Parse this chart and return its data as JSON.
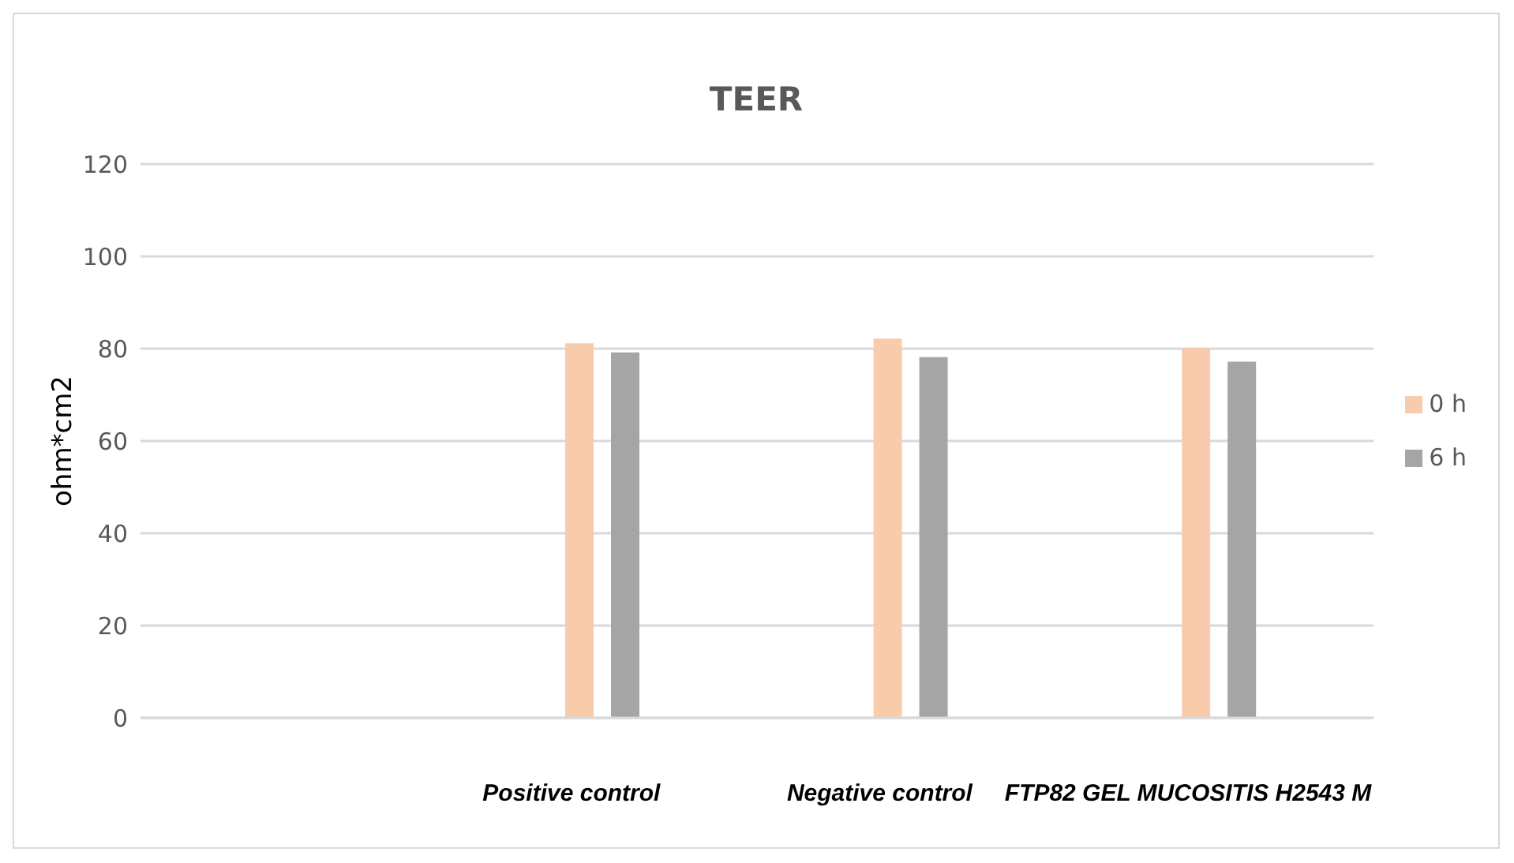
{
  "chart_data": {
    "type": "bar",
    "title": "TEER",
    "ylabel": "ohm*cm2",
    "categories": [
      null,
      "Positive control",
      "Negative control",
      "FTP82 GEL MUCOSITIS H2543 M"
    ],
    "series": [
      {
        "name": "0 h",
        "color": "#f8cbad",
        "values": [
          null,
          81,
          82,
          80
        ]
      },
      {
        "name": "6 h",
        "color": "#a5a5a5",
        "values": [
          null,
          79,
          78,
          77
        ]
      }
    ],
    "ylim": [
      0,
      120
    ],
    "yticks": [
      0,
      20,
      40,
      60,
      80,
      100,
      120
    ],
    "grid": "y",
    "legend": "right"
  }
}
